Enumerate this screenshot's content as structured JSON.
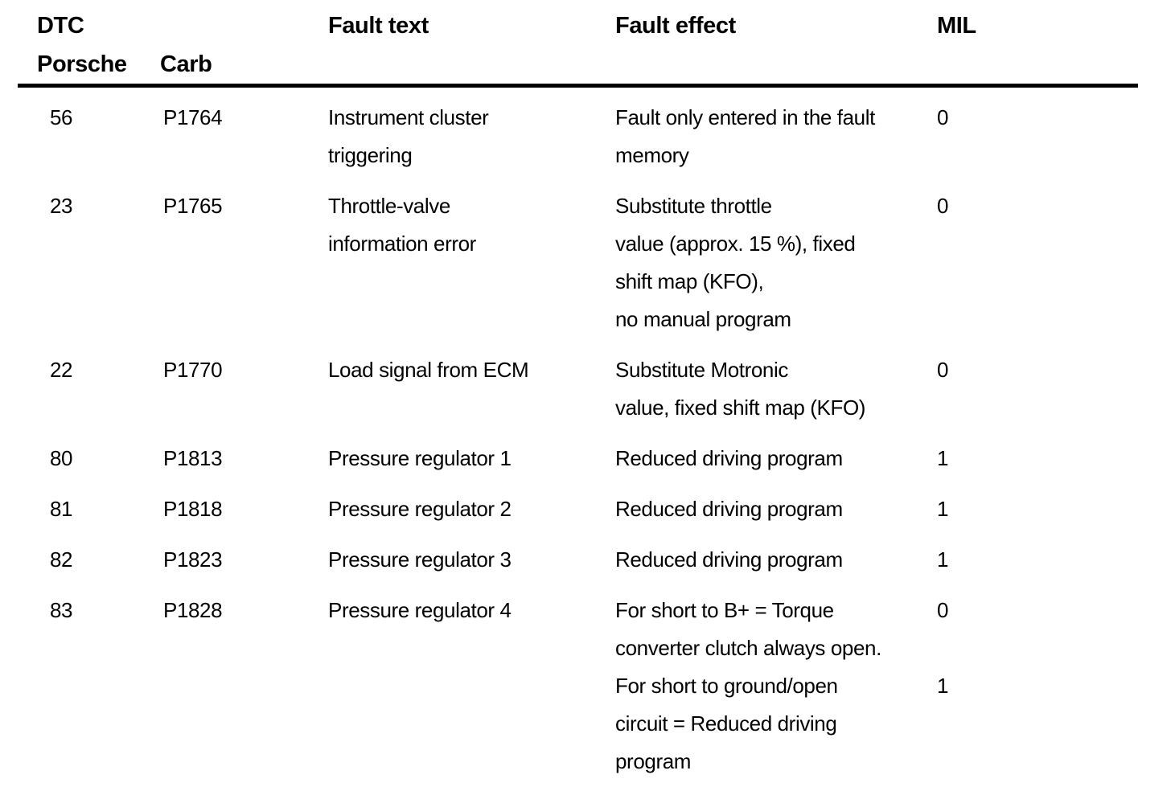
{
  "document": {
    "type": "fault-code-table"
  },
  "header": {
    "dtc": "DTC",
    "porsche": "Porsche",
    "carb": "Carb",
    "fault_text": "Fault text",
    "fault_effect": "Fault effect",
    "mil": "MIL"
  },
  "rows": [
    {
      "porsche": "56",
      "carb": "P1764",
      "fault_text": [
        "Instrument cluster",
        "triggering"
      ],
      "fault_effect": [
        "Fault only entered in the fault",
        "memory"
      ],
      "mil": [
        "0"
      ]
    },
    {
      "porsche": "23",
      "carb": "P1765",
      "fault_text": [
        "Throttle-valve",
        "information error"
      ],
      "fault_effect": [
        "Substitute throttle",
        "value (approx. 15 %), fixed",
        "shift map (KFO),",
        "no manual program"
      ],
      "mil": [
        "0"
      ]
    },
    {
      "porsche": "22",
      "carb": "P1770",
      "fault_text": [
        "Load signal from ECM"
      ],
      "fault_effect": [
        "Substitute Motronic",
        "value, fixed shift map (KFO)"
      ],
      "mil": [
        "0"
      ]
    },
    {
      "porsche": "80",
      "carb": "P1813",
      "fault_text": [
        "Pressure regulator 1"
      ],
      "fault_effect": [
        "Reduced driving program"
      ],
      "mil": [
        "1"
      ]
    },
    {
      "porsche": "81",
      "carb": "P1818",
      "fault_text": [
        "Pressure regulator 2"
      ],
      "fault_effect": [
        "Reduced driving program"
      ],
      "mil": [
        "1"
      ]
    },
    {
      "porsche": "82",
      "carb": "P1823",
      "fault_text": [
        "Pressure regulator 3"
      ],
      "fault_effect": [
        "Reduced driving program"
      ],
      "mil": [
        "1"
      ]
    },
    {
      "porsche": "83",
      "carb": "P1828",
      "fault_text": [
        "Pressure regulator 4"
      ],
      "fault_effect": [
        "For short to B+ = Torque",
        "converter clutch always open.",
        "For short to ground/open",
        "circuit = Reduced driving",
        "program"
      ],
      "mil": [
        "0",
        "",
        "1"
      ]
    }
  ],
  "colors": {
    "text": "#000000",
    "background": "#ffffff",
    "rule": "#000000"
  }
}
